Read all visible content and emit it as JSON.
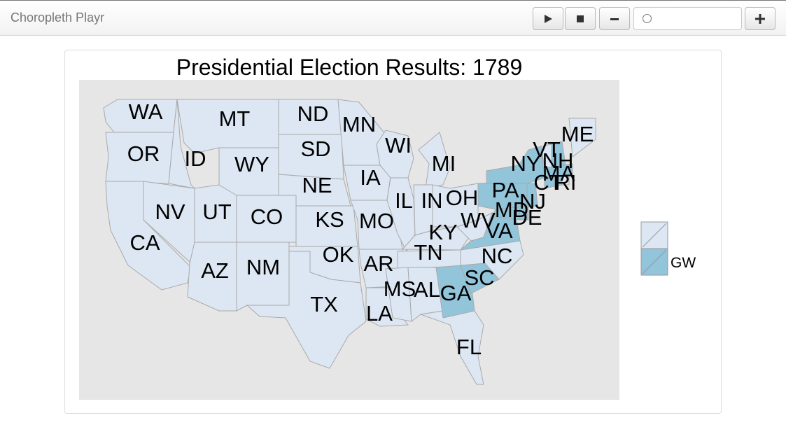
{
  "app": {
    "brand": "Choropleth Playr"
  },
  "controls": {
    "play_icon": "play-icon",
    "stop_icon": "stop-icon",
    "minus_icon": "minus-icon",
    "plus_icon": "plus-icon",
    "slider_position": 0
  },
  "chart": {
    "title": "Presidential Election Results: 1789",
    "legend": [
      {
        "label": "",
        "color": "#dce7f3"
      },
      {
        "label": "GW",
        "color": "#92c4da"
      }
    ]
  },
  "chart_data": {
    "type": "choropleth",
    "title": "Presidential Election Results: 1789",
    "legend_position": "right",
    "categories": [
      "",
      "GW"
    ],
    "colors": {
      "": "#dce7f3",
      "GW": "#92c4da"
    },
    "states": [
      {
        "abbr": "WA",
        "value": ""
      },
      {
        "abbr": "OR",
        "value": ""
      },
      {
        "abbr": "CA",
        "value": ""
      },
      {
        "abbr": "ID",
        "value": ""
      },
      {
        "abbr": "NV",
        "value": ""
      },
      {
        "abbr": "MT",
        "value": ""
      },
      {
        "abbr": "WY",
        "value": ""
      },
      {
        "abbr": "UT",
        "value": ""
      },
      {
        "abbr": "AZ",
        "value": ""
      },
      {
        "abbr": "CO",
        "value": ""
      },
      {
        "abbr": "NM",
        "value": ""
      },
      {
        "abbr": "ND",
        "value": ""
      },
      {
        "abbr": "SD",
        "value": ""
      },
      {
        "abbr": "NE",
        "value": ""
      },
      {
        "abbr": "KS",
        "value": ""
      },
      {
        "abbr": "OK",
        "value": ""
      },
      {
        "abbr": "TX",
        "value": ""
      },
      {
        "abbr": "MN",
        "value": ""
      },
      {
        "abbr": "IA",
        "value": ""
      },
      {
        "abbr": "MO",
        "value": ""
      },
      {
        "abbr": "AR",
        "value": ""
      },
      {
        "abbr": "LA",
        "value": ""
      },
      {
        "abbr": "WI",
        "value": ""
      },
      {
        "abbr": "IL",
        "value": ""
      },
      {
        "abbr": "MI",
        "value": ""
      },
      {
        "abbr": "IN",
        "value": ""
      },
      {
        "abbr": "OH",
        "value": ""
      },
      {
        "abbr": "KY",
        "value": ""
      },
      {
        "abbr": "TN",
        "value": ""
      },
      {
        "abbr": "MS",
        "value": ""
      },
      {
        "abbr": "AL",
        "value": ""
      },
      {
        "abbr": "FL",
        "value": ""
      },
      {
        "abbr": "WV",
        "value": ""
      },
      {
        "abbr": "ME",
        "value": ""
      },
      {
        "abbr": "GA",
        "value": "GW"
      },
      {
        "abbr": "SC",
        "value": "GW"
      },
      {
        "abbr": "NC",
        "value": ""
      },
      {
        "abbr": "VA",
        "value": "GW"
      },
      {
        "abbr": "MD",
        "value": "GW"
      },
      {
        "abbr": "DE",
        "value": "GW"
      },
      {
        "abbr": "NJ",
        "value": "GW"
      },
      {
        "abbr": "PA",
        "value": "GW"
      },
      {
        "abbr": "NY",
        "value": "GW"
      },
      {
        "abbr": "CT",
        "value": "GW"
      },
      {
        "abbr": "RI",
        "value": ""
      },
      {
        "abbr": "MA",
        "value": "GW"
      },
      {
        "abbr": "VT",
        "value": ""
      },
      {
        "abbr": "NH",
        "value": "GW"
      }
    ]
  }
}
